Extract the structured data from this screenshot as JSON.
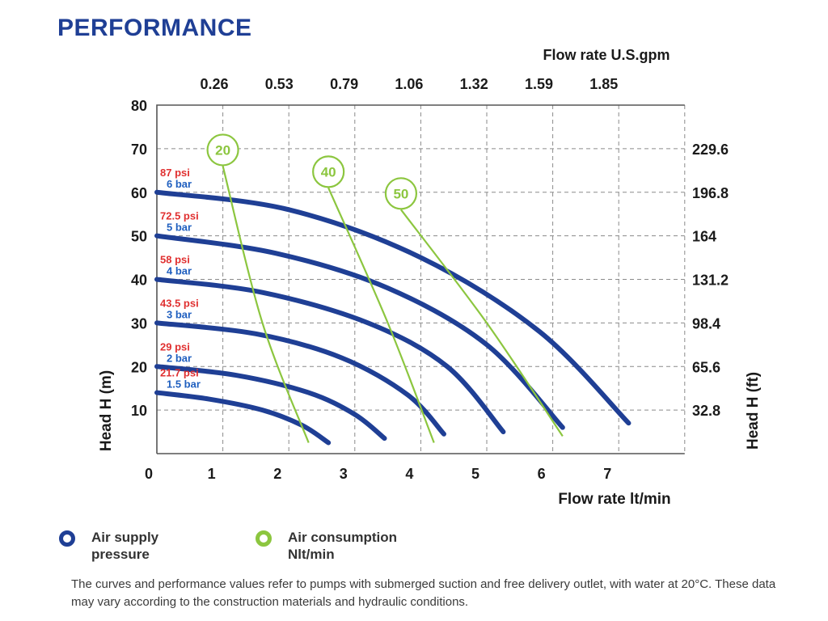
{
  "header": {
    "title": "PERFORMANCE"
  },
  "chart_data": {
    "type": "line",
    "x_axis": {
      "label": "Flow rate  lt/min",
      "min": 0,
      "max": 8,
      "ticks": [
        0,
        1,
        2,
        3,
        4,
        5,
        6,
        7
      ],
      "gridlines": [
        1,
        2,
        3,
        4,
        5,
        6,
        7,
        8
      ]
    },
    "x2_axis": {
      "label": "Flow rate U.S.gpm",
      "ticks": [
        0.26,
        0.53,
        0.79,
        1.06,
        1.32,
        1.59,
        1.85
      ]
    },
    "y_axis": {
      "label": "Head H (m)",
      "min": 0,
      "max": 80,
      "ticks": [
        10,
        20,
        30,
        40,
        50,
        60,
        70,
        80
      ]
    },
    "y2_axis": {
      "label": "Head H (ft)",
      "ticks": [
        "32.8",
        "65.6",
        "98.4",
        "131.2",
        "164",
        "196.8",
        "229.6"
      ],
      "tick_positions_m": [
        10,
        20,
        30,
        40,
        50,
        60,
        70
      ]
    },
    "grid": true,
    "origin_label": "0",
    "series_pressure": [
      {
        "psi": "21.7 psi",
        "bar": "1.5 bar",
        "x": [
          0,
          0.8,
          1.6,
          2.2,
          2.6
        ],
        "y": [
          14,
          12.5,
          10,
          6.5,
          2.5
        ]
      },
      {
        "psi": "29 psi",
        "bar": "2 bar",
        "x": [
          0,
          1.2,
          2.3,
          3.0,
          3.45
        ],
        "y": [
          20,
          18,
          14,
          9,
          3.5
        ]
      },
      {
        "psi": "43.5 psi",
        "bar": "3 bar",
        "x": [
          0,
          1.5,
          2.8,
          3.8,
          4.35
        ],
        "y": [
          30,
          27.5,
          22,
          13.5,
          4.5
        ]
      },
      {
        "psi": "58 psi",
        "bar": "4 bar",
        "x": [
          0,
          1.6,
          3.2,
          4.4,
          5.25
        ],
        "y": [
          40,
          37,
          30,
          20,
          5
        ]
      },
      {
        "psi": "72.5 psi",
        "bar": "5 bar",
        "x": [
          0,
          1.8,
          3.5,
          5.0,
          6.15
        ],
        "y": [
          50,
          46,
          38,
          25,
          6
        ]
      },
      {
        "psi": "87 psi",
        "bar": "6 bar",
        "x": [
          0,
          2.0,
          4.0,
          5.8,
          7.15
        ],
        "y": [
          60,
          56,
          45,
          28,
          7
        ]
      }
    ],
    "series_air": [
      {
        "label": "20",
        "x": [
          1.0,
          1.6,
          2.3
        ],
        "y": [
          66,
          30,
          2.5
        ]
      },
      {
        "label": "40",
        "x": [
          2.6,
          3.5,
          4.2
        ],
        "y": [
          61,
          30,
          2.5
        ]
      },
      {
        "label": "50",
        "x": [
          3.7,
          5.0,
          6.15
        ],
        "y": [
          56,
          30,
          4
        ]
      }
    ],
    "colors": {
      "pressure": "#1f3f95",
      "air": "#8cc63f",
      "psi_label": "#e03030",
      "bar_label": "#1f5fbf",
      "grid": "#8a8a8a",
      "frame": "#555555"
    }
  },
  "legend": {
    "air_supply": "Air supply\npressure",
    "air_consumption": "Air consumption\nNlt/min"
  },
  "footnote": "The curves and performance values refer to pumps with submerged suction and free delivery outlet, with water at 20°C. These data may vary according to the construction materials and hydraulic conditions."
}
